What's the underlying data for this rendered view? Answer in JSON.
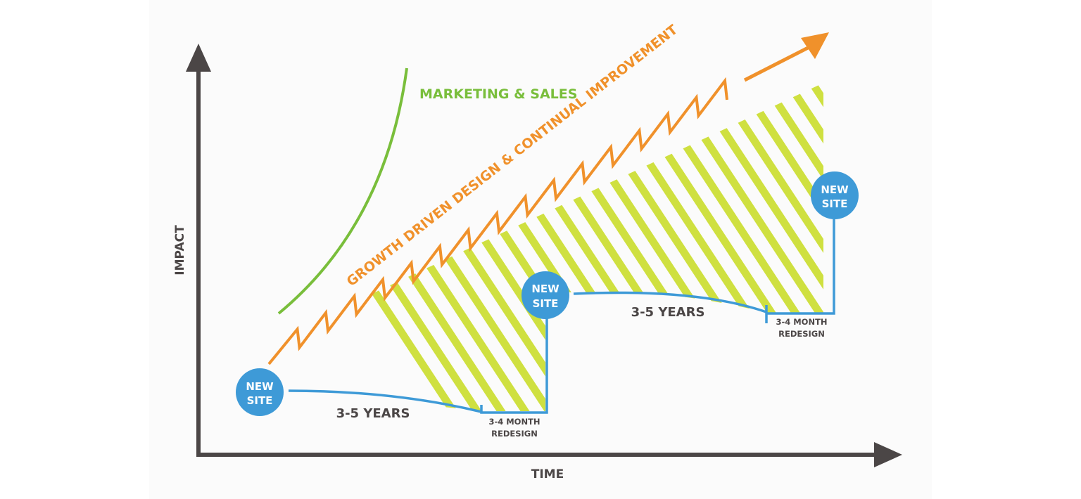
{
  "axes": {
    "y_label": "IMPACT",
    "x_label": "TIME"
  },
  "labels": {
    "marketing": "MARKETING & SALES",
    "growth": "GROWTH DRIVEN DESIGN & CONTINUAL IMPROVEMENT"
  },
  "sites": [
    {
      "line1": "NEW",
      "line2": "SITE"
    },
    {
      "line1": "NEW",
      "line2": "SITE"
    },
    {
      "line1": "NEW",
      "line2": "SITE"
    }
  ],
  "periods": [
    {
      "duration": "3-5 YEARS",
      "redesign_line1": "3-4 MONTH",
      "redesign_line2": "REDESIGN"
    },
    {
      "duration": "3-5 YEARS",
      "redesign_line1": "3-4 MONTH",
      "redesign_line2": "REDESIGN"
    }
  ],
  "colors": {
    "axis": "#4b4646",
    "green": "#79be3b",
    "hatch": "#cfe040",
    "orange": "#f0912b",
    "blue": "#3e9ad7",
    "circle_text": "#ffffff",
    "text_dark": "#4b4646"
  }
}
